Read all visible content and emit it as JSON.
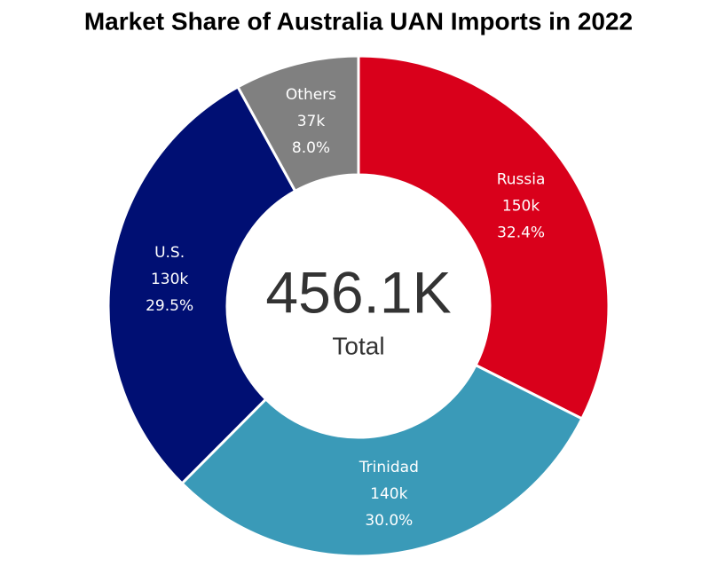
{
  "chart_data": {
    "type": "donut",
    "title": "Market Share of Australia UAN Imports in 2022",
    "categories": [
      "Russia",
      "Trinidad",
      "U.S.",
      "Others"
    ],
    "values": [
      32.4,
      30.0,
      29.5,
      8.0
    ],
    "value_labels": [
      "32.4%",
      "30.0%",
      "29.5%",
      "8.0%"
    ],
    "amounts": [
      150000,
      140000,
      130000,
      37000
    ],
    "amount_labels": [
      "150k",
      "140k",
      "130k",
      "37k"
    ],
    "colors": [
      "#d9001b",
      "#3a9ab8",
      "#000f73",
      "#808080"
    ],
    "total": {
      "value": 456100,
      "label": "456.1K"
    },
    "total_caption": "Total"
  }
}
